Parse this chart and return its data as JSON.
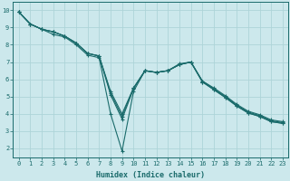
{
  "xlabel": "Humidex (Indice chaleur)",
  "bg_color": "#cce8ec",
  "grid_color": "#aed4d8",
  "line_color": "#1a6b6b",
  "xlim": [
    -0.5,
    23.5
  ],
  "ylim": [
    1.5,
    10.5
  ],
  "xticks": [
    0,
    1,
    2,
    3,
    4,
    5,
    6,
    7,
    8,
    9,
    10,
    11,
    12,
    13,
    14,
    15,
    16,
    17,
    18,
    19,
    20,
    21,
    22,
    23
  ],
  "yticks": [
    2,
    3,
    4,
    5,
    6,
    7,
    8,
    9,
    10
  ],
  "series": [
    {
      "x": [
        0,
        1,
        2,
        3,
        4,
        5,
        6,
        7,
        8,
        9,
        10,
        11,
        12,
        13,
        14,
        15,
        16,
        17,
        18,
        19,
        20,
        21,
        22,
        23
      ],
      "y": [
        9.9,
        9.2,
        8.9,
        8.75,
        8.5,
        8.1,
        7.5,
        7.35,
        5.3,
        4.0,
        5.5,
        6.5,
        6.4,
        6.5,
        6.85,
        7.0,
        5.9,
        5.5,
        5.05,
        4.55,
        4.15,
        3.95,
        3.65,
        3.55
      ]
    },
    {
      "x": [
        0,
        1,
        2,
        3,
        4,
        5,
        6,
        7,
        8,
        9,
        10,
        11,
        12,
        13,
        14,
        15,
        16,
        17,
        18,
        19,
        20,
        21,
        22,
        23
      ],
      "y": [
        9.9,
        9.2,
        8.9,
        8.75,
        8.5,
        8.1,
        7.5,
        7.35,
        5.2,
        3.85,
        5.5,
        6.5,
        6.4,
        6.5,
        6.9,
        7.0,
        5.9,
        5.45,
        5.0,
        4.5,
        4.1,
        3.9,
        3.6,
        3.5
      ]
    },
    {
      "x": [
        0,
        1,
        2,
        3,
        4,
        5,
        6,
        7,
        8,
        9,
        10,
        11,
        12,
        13,
        14,
        15,
        16,
        17,
        18,
        19,
        20,
        21,
        22,
        23
      ],
      "y": [
        9.9,
        9.2,
        8.9,
        8.75,
        8.5,
        8.1,
        7.5,
        7.35,
        5.1,
        3.7,
        5.45,
        6.5,
        6.4,
        6.5,
        6.85,
        7.0,
        5.85,
        5.4,
        4.95,
        4.45,
        4.05,
        3.85,
        3.55,
        3.45
      ]
    },
    {
      "x": [
        0,
        1,
        2,
        3,
        4,
        5,
        6,
        7,
        8,
        9,
        10,
        11,
        12,
        13,
        14,
        15,
        16,
        17,
        18,
        19,
        20,
        21,
        22,
        23
      ],
      "y": [
        9.9,
        9.2,
        8.9,
        8.6,
        8.45,
        8.0,
        7.4,
        7.25,
        4.0,
        1.85,
        5.3,
        6.5,
        6.4,
        6.5,
        6.85,
        7.0,
        5.85,
        5.4,
        4.95,
        4.45,
        4.05,
        3.85,
        3.55,
        3.45
      ]
    }
  ],
  "marker": "+",
  "markersize": 3,
  "linewidth": 0.8,
  "tick_fontsize": 5,
  "xlabel_fontsize": 6
}
